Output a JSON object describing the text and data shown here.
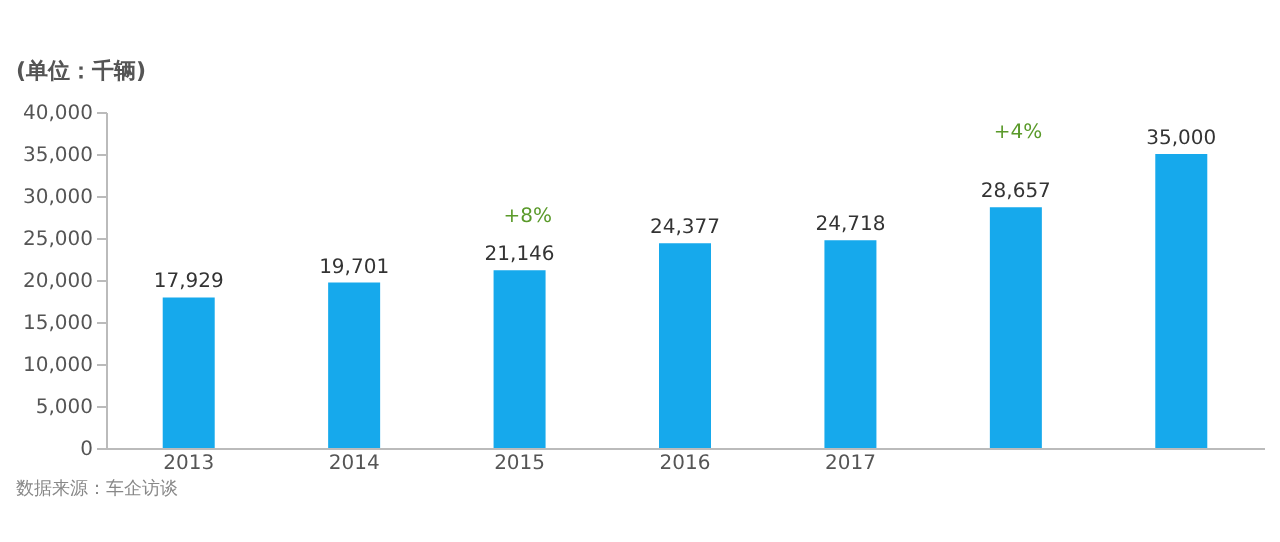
{
  "chart_data": {
    "type": "bar",
    "ylabel": "(单位：千辆)",
    "categories": [
      "2013",
      "2014",
      "2015",
      "2016",
      "2017",
      null,
      null
    ],
    "values": [
      17929,
      19701,
      21146,
      24377,
      24718,
      28657,
      35000
    ],
    "color": "#16a9ec",
    "ylim": [
      0,
      40000
    ],
    "yticks": [
      {
        "value": 0,
        "label": "0"
      },
      {
        "value": 5000,
        "label": "5,000"
      },
      {
        "value": 10000,
        "label": "10,000"
      },
      {
        "value": 15000,
        "label": "15,000"
      },
      {
        "value": 20000,
        "label": "20,000"
      },
      {
        "value": 25000,
        "label": "25,000"
      },
      {
        "value": 30000,
        "label": "30,000"
      },
      {
        "value": 35000,
        "label": "35,000"
      },
      {
        "value": 40000,
        "label": "40,000"
      }
    ],
    "value_labels": [
      "17,929",
      "19,701",
      "21,146",
      "24,377",
      "24,718",
      "28,657",
      "35,000"
    ],
    "grid": false,
    "annotations": [
      "+8%",
      "+4%",
      "数据来源：车企访谈"
    ]
  }
}
